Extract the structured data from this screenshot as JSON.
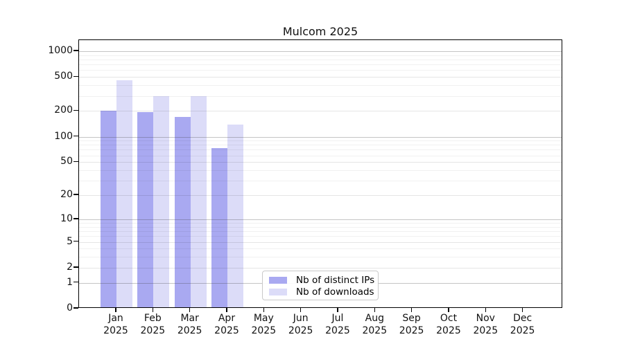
{
  "window": {
    "title": "Mulcom 2025"
  },
  "chart_data": {
    "type": "bar",
    "title": "Mulcom 2025",
    "categories": [
      "Jan",
      "Feb",
      "Mar",
      "Apr",
      "May",
      "Jun",
      "Jul",
      "Aug",
      "Sep",
      "Oct",
      "Nov",
      "Dec"
    ],
    "x_year": "2025",
    "series": [
      {
        "name": "Nb of distinct IPs",
        "color": "#a9a9f1",
        "values": [
          195,
          186,
          165,
          70,
          0,
          0,
          0,
          0,
          0,
          0,
          0,
          0
        ]
      },
      {
        "name": "Nb of downloads",
        "color": "#dcdcf8",
        "values": [
          445,
          285,
          290,
          133,
          0,
          0,
          0,
          0,
          0,
          0,
          0,
          0
        ]
      }
    ],
    "y_axis": {
      "scale": "log10(value+1)",
      "ticks": [
        0,
        1,
        2,
        5,
        10,
        20,
        50,
        100,
        200,
        500,
        1000
      ],
      "range_top": 1000
    },
    "grid": true,
    "legend": {
      "position": "bottom-center",
      "entries": [
        "Nb of distinct IPs",
        "Nb of downloads"
      ]
    }
  },
  "colors": {
    "bar_ips": "#a9a9f1",
    "bar_downloads": "#dcdcf8",
    "grid_major": "rgba(60,60,60,0.30)",
    "grid_mid": "rgba(0,0,0,0.10)",
    "grid_minor": "rgba(0,0,0,0.055)",
    "spine": "#000000",
    "legend_border": "#c9c9c9"
  }
}
